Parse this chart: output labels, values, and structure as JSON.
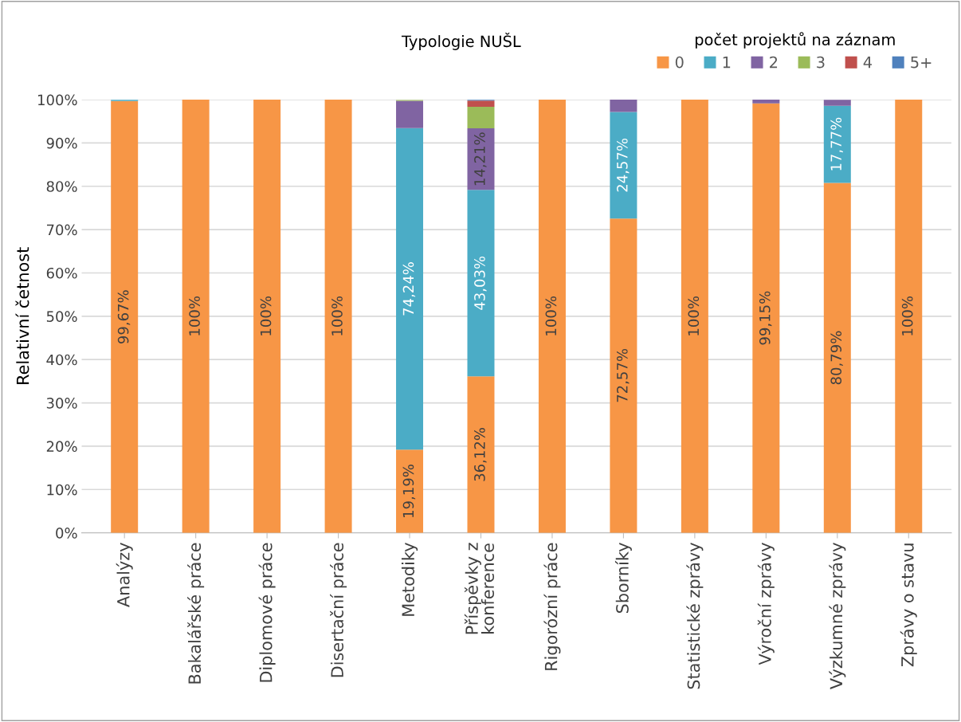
{
  "chart_data": {
    "type": "bar",
    "stacked": true,
    "title": "Typologie NUŠL",
    "ylabel": "Relativní četnost",
    "legend_title": "počet projektů na záznam",
    "legend": "top right",
    "grid": "y",
    "categories": [
      "Analýzy",
      "Bakalářské práce",
      "Diplomové práce",
      "Disertační práce",
      "Metodiky",
      "Příspěvky z\nkonference",
      "Rigorózní práce",
      "Sborníky",
      "Statistické zprávy",
      "Výroční zprávy",
      "Výzkumné zprávy",
      "Zprávy o stavu"
    ],
    "ylim": [
      0,
      100
    ],
    "yticks": [
      {
        "value": 0,
        "label": "0%"
      },
      {
        "value": 10,
        "label": "10%"
      },
      {
        "value": 20,
        "label": "20%"
      },
      {
        "value": 30,
        "label": "30%"
      },
      {
        "value": 40,
        "label": "40%"
      },
      {
        "value": 50,
        "label": "50%"
      },
      {
        "value": 60,
        "label": "60%"
      },
      {
        "value": 70,
        "label": "70%"
      },
      {
        "value": 80,
        "label": "80%"
      },
      {
        "value": 90,
        "label": "90%"
      },
      {
        "value": 100,
        "label": "100%"
      }
    ],
    "series": [
      {
        "name": "0",
        "color": "#f79646",
        "values": [
          99.67,
          100,
          100,
          100,
          19.19,
          36.12,
          100,
          72.57,
          100,
          99.15,
          80.79,
          100
        ],
        "value_labels": [
          "99,67%",
          "100%",
          "100%",
          "100%",
          "19,19%",
          "36,12%",
          "100%",
          "72,57%",
          "100%",
          "99,15%",
          "80,79%",
          "100%"
        ]
      },
      {
        "name": "1",
        "color": "#4bacc6",
        "values": [
          0.3,
          0,
          0,
          0,
          74.24,
          43.03,
          0,
          24.57,
          0,
          0,
          17.77,
          0
        ],
        "value_labels": [
          null,
          null,
          null,
          null,
          "74,24%",
          "43,03%",
          null,
          "24,57%",
          null,
          null,
          "17,77%",
          null
        ]
      },
      {
        "name": "2",
        "color": "#8064a2",
        "values": [
          0,
          0,
          0,
          0,
          6.3,
          14.21,
          0,
          2.9,
          0,
          0.9,
          1.4,
          0
        ],
        "value_labels": [
          null,
          null,
          null,
          null,
          null,
          "14,21%",
          null,
          null,
          null,
          null,
          null,
          null
        ]
      },
      {
        "name": "3",
        "color": "#9bbb59",
        "values": [
          0,
          0,
          0,
          0,
          0.2,
          5.0,
          0,
          0,
          0,
          0,
          0,
          0
        ]
      },
      {
        "name": "4",
        "color": "#c0504d",
        "values": [
          0,
          0,
          0,
          0,
          0,
          1.4,
          0,
          0,
          0,
          0,
          0,
          0
        ]
      },
      {
        "name": "5+",
        "color": "#4f81bd",
        "values": [
          0,
          0,
          0,
          0,
          0,
          0.2,
          0,
          0,
          0,
          0,
          0,
          0
        ]
      }
    ]
  }
}
